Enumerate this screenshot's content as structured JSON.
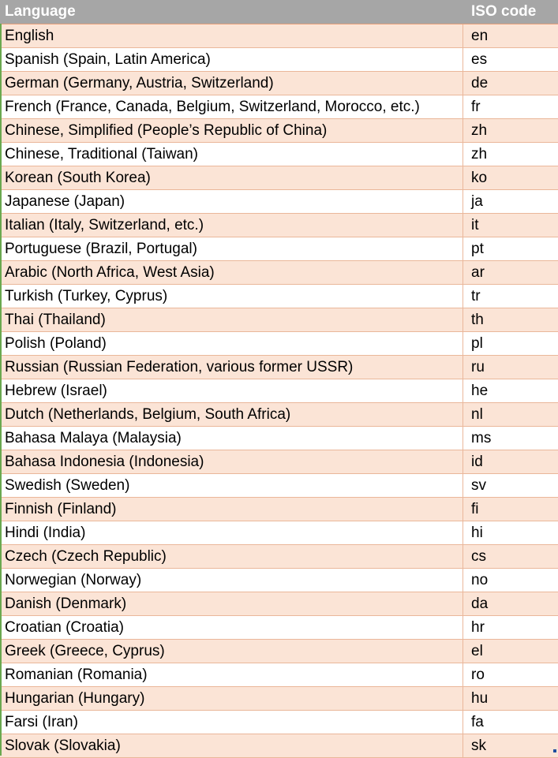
{
  "table": {
    "headers": {
      "language": "Language",
      "iso": "ISO code"
    },
    "rows": [
      {
        "language": "English",
        "iso": "en"
      },
      {
        "language": "Spanish (Spain, Latin America)",
        "iso": "es"
      },
      {
        "language": "German (Germany, Austria, Switzerland)",
        "iso": "de"
      },
      {
        "language": "French (France, Canada, Belgium, Switzerland, Morocco, etc.)",
        "iso": "fr"
      },
      {
        "language": "Chinese, Simplified (People’s Republic of China)",
        "iso": "zh"
      },
      {
        "language": "Chinese, Traditional (Taiwan)",
        "iso": "zh"
      },
      {
        "language": "Korean (South Korea)",
        "iso": "ko"
      },
      {
        "language": "Japanese (Japan)",
        "iso": "ja"
      },
      {
        "language": "Italian (Italy, Switzerland, etc.)",
        "iso": "it"
      },
      {
        "language": "Portuguese (Brazil, Portugal)",
        "iso": "pt"
      },
      {
        "language": "Arabic (North Africa, West Asia)",
        "iso": "ar"
      },
      {
        "language": "Turkish (Turkey, Cyprus)",
        "iso": "tr"
      },
      {
        "language": "Thai (Thailand)",
        "iso": "th"
      },
      {
        "language": "Polish (Poland)",
        "iso": "pl"
      },
      {
        "language": "Russian (Russian Federation, various former USSR)",
        "iso": "ru"
      },
      {
        "language": "Hebrew (Israel)",
        "iso": "he"
      },
      {
        "language": "Dutch (Netherlands, Belgium, South Africa)",
        "iso": "nl"
      },
      {
        "language": "Bahasa Malaya (Malaysia)",
        "iso": "ms"
      },
      {
        "language": "Bahasa Indonesia (Indonesia)",
        "iso": "id"
      },
      {
        "language": "Swedish (Sweden)",
        "iso": "sv"
      },
      {
        "language": "Finnish (Finland)",
        "iso": "fi"
      },
      {
        "language": "Hindi (India)",
        "iso": "hi"
      },
      {
        "language": "Czech (Czech Republic)",
        "iso": "cs"
      },
      {
        "language": "Norwegian (Norway)",
        "iso": "no"
      },
      {
        "language": "Danish (Denmark)",
        "iso": "da"
      },
      {
        "language": "Croatian (Croatia)",
        "iso": "hr"
      },
      {
        "language": "Greek (Greece, Cyprus)",
        "iso": "el"
      },
      {
        "language": "Romanian (Romania)",
        "iso": "ro"
      },
      {
        "language": "Hungarian (Hungary)",
        "iso": "hu"
      },
      {
        "language": "Farsi (Iran)",
        "iso": "fa"
      },
      {
        "language": "Slovak (Slovakia)",
        "iso": "sk"
      }
    ]
  },
  "colors": {
    "header_bg": "#a6a6a6",
    "shaded_row": "#fbe4d6",
    "plain_row": "#ffffff",
    "border": "#eab79a"
  }
}
